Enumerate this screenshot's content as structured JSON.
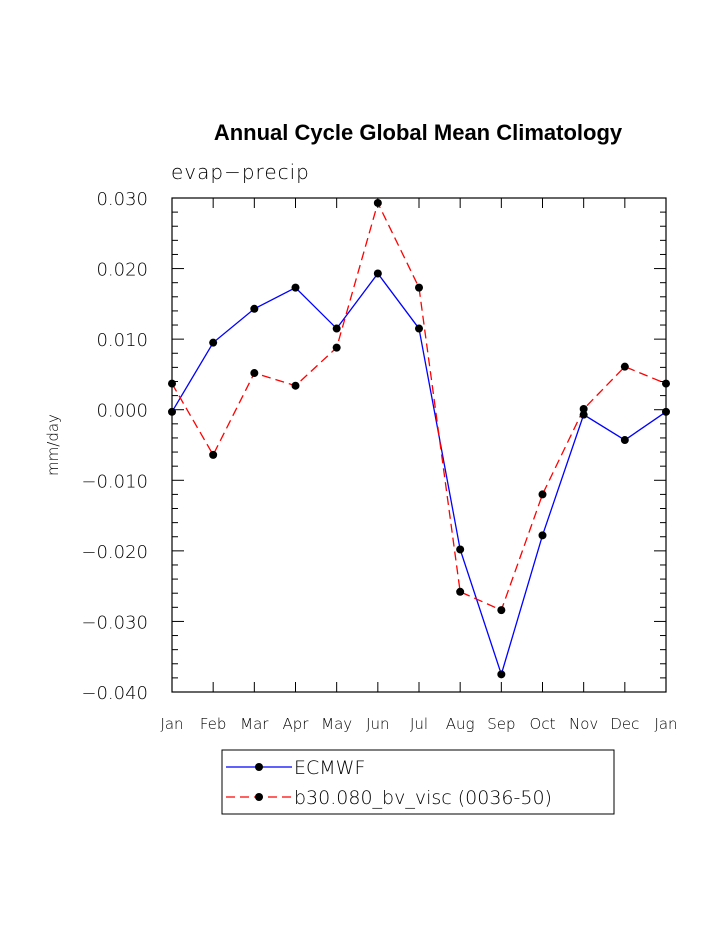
{
  "chart_data": {
    "type": "line",
    "title": "Annual Cycle Global Mean Climatology",
    "subtitle": "evap−precip",
    "xlabel": "",
    "ylabel": "mm/day",
    "categories": [
      "Jan",
      "Feb",
      "Mar",
      "Apr",
      "May",
      "Jun",
      "Jul",
      "Aug",
      "Sep",
      "Oct",
      "Nov",
      "Dec",
      "Jan"
    ],
    "ylim": [
      -0.04,
      0.03
    ],
    "yticks": [
      -0.04,
      -0.03,
      -0.02,
      -0.01,
      0.0,
      0.01,
      0.02,
      0.03
    ],
    "ytick_labels": [
      "−0.040",
      "−0.030",
      "−0.020",
      "−0.010",
      "0.000",
      "0.010",
      "0.020",
      "0.030"
    ],
    "grid": false,
    "legend_position": "bottom-center",
    "series": [
      {
        "name": "ECMWF",
        "color": "#0000ff",
        "style": "solid",
        "values": [
          -0.0003,
          0.0095,
          0.0143,
          0.0173,
          0.0115,
          0.0193,
          0.0115,
          -0.0198,
          -0.0375,
          -0.0178,
          -0.0007,
          -0.0043,
          -0.0003
        ]
      },
      {
        "name": "b30.080_bv_visc (0036-50)",
        "color": "#ff0000",
        "style": "dashed",
        "values": [
          0.0037,
          -0.0064,
          0.0052,
          0.0034,
          0.0088,
          0.0293,
          0.0173,
          -0.0258,
          -0.0284,
          -0.012,
          0.0001,
          0.0061,
          0.0037
        ]
      }
    ]
  }
}
